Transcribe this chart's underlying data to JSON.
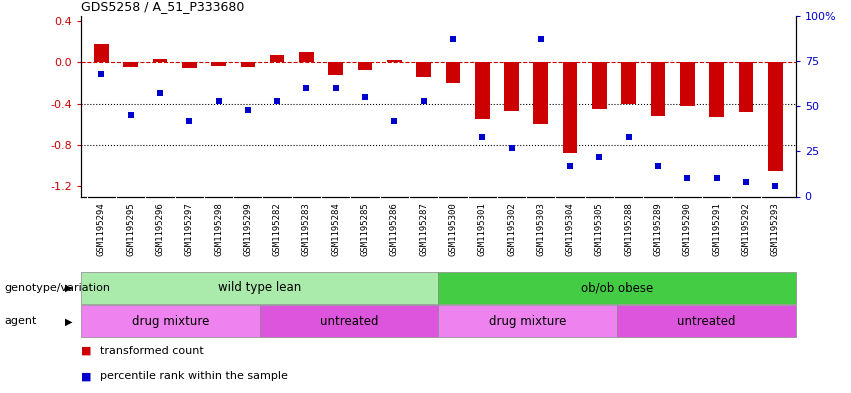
{
  "title": "GDS5258 / A_51_P333680",
  "samples": [
    "GSM1195294",
    "GSM1195295",
    "GSM1195296",
    "GSM1195297",
    "GSM1195298",
    "GSM1195299",
    "GSM1195282",
    "GSM1195283",
    "GSM1195284",
    "GSM1195285",
    "GSM1195286",
    "GSM1195287",
    "GSM1195300",
    "GSM1195301",
    "GSM1195302",
    "GSM1195303",
    "GSM1195304",
    "GSM1195305",
    "GSM1195288",
    "GSM1195289",
    "GSM1195290",
    "GSM1195291",
    "GSM1195292",
    "GSM1195293"
  ],
  "bar_values": [
    0.18,
    -0.05,
    0.03,
    -0.06,
    -0.04,
    -0.05,
    0.07,
    0.1,
    -0.12,
    -0.08,
    0.02,
    -0.14,
    -0.2,
    -0.55,
    -0.47,
    -0.6,
    -0.88,
    -0.45,
    -0.4,
    -0.52,
    -0.42,
    -0.53,
    -0.48,
    -1.05
  ],
  "dot_values_pct": [
    68,
    45,
    57,
    42,
    53,
    48,
    53,
    60,
    60,
    55,
    42,
    53,
    87,
    33,
    27,
    87,
    17,
    22,
    33,
    17,
    10,
    10,
    8,
    6
  ],
  "bar_color": "#cc0000",
  "dot_color": "#0000cc",
  "hline_color": "#cc0000",
  "dotted_line_color": "#000000",
  "ylim_left": [
    -1.3,
    0.45
  ],
  "ylim_right": [
    0,
    100
  ],
  "yticks_left": [
    -1.2,
    -0.8,
    -0.4,
    0.0,
    0.4
  ],
  "yticks_right": [
    0,
    25,
    50,
    75,
    100
  ],
  "genotype_labels": [
    {
      "label": "wild type lean",
      "start": 0,
      "end": 12,
      "color": "#aaeaaa"
    },
    {
      "label": "ob/ob obese",
      "start": 12,
      "end": 24,
      "color": "#44cc44"
    }
  ],
  "agent_labels": [
    {
      "label": "drug mixture",
      "start": 0,
      "end": 6,
      "color": "#ee82ee"
    },
    {
      "label": "untreated",
      "start": 6,
      "end": 12,
      "color": "#dd55dd"
    },
    {
      "label": "drug mixture",
      "start": 12,
      "end": 18,
      "color": "#ee82ee"
    },
    {
      "label": "untreated",
      "start": 18,
      "end": 24,
      "color": "#dd55dd"
    }
  ],
  "legend_items": [
    {
      "label": "transformed count",
      "color": "#cc0000"
    },
    {
      "label": "percentile rank within the sample",
      "color": "#0000cc"
    }
  ],
  "genotype_row_label": "genotype/variation",
  "agent_row_label": "agent",
  "background_color": "#ffffff",
  "tick_label_fontsize": 6.5,
  "xtick_bg_color": "#cccccc"
}
